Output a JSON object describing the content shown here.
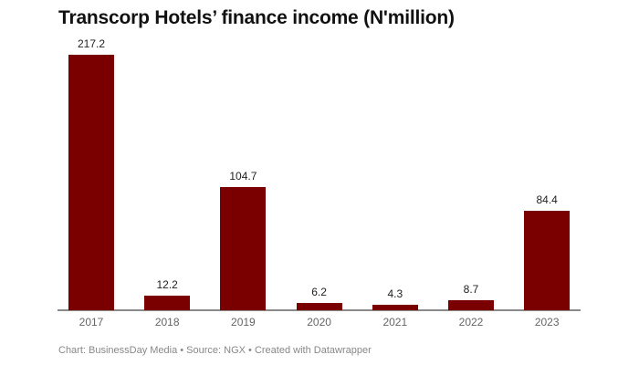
{
  "title": "Transcorp Hotels’ finance income (N'million)",
  "footer": "Chart: BusinessDay Media  • Source: NGX • Created with Datawrapper",
  "colors": {
    "bar": "#7a0000",
    "axis": "#8a8a8a"
  },
  "chart_data": {
    "type": "bar",
    "title": "Transcorp Hotels’ finance income (N'million)",
    "xlabel": "",
    "ylabel": "",
    "categories": [
      "2017",
      "2018",
      "2019",
      "2020",
      "2021",
      "2022",
      "2023"
    ],
    "values": [
      217.2,
      12.2,
      104.7,
      6.2,
      4.3,
      8.7,
      84.4
    ],
    "labels": [
      "217.2",
      "12.2",
      "104.7",
      "6.2",
      "4.3",
      "8.7",
      "84.4"
    ],
    "ylim": [
      0,
      217.2
    ],
    "grid": false,
    "legend": null,
    "source": "Chart: BusinessDay Media  • Source: NGX • Created with Datawrapper"
  }
}
